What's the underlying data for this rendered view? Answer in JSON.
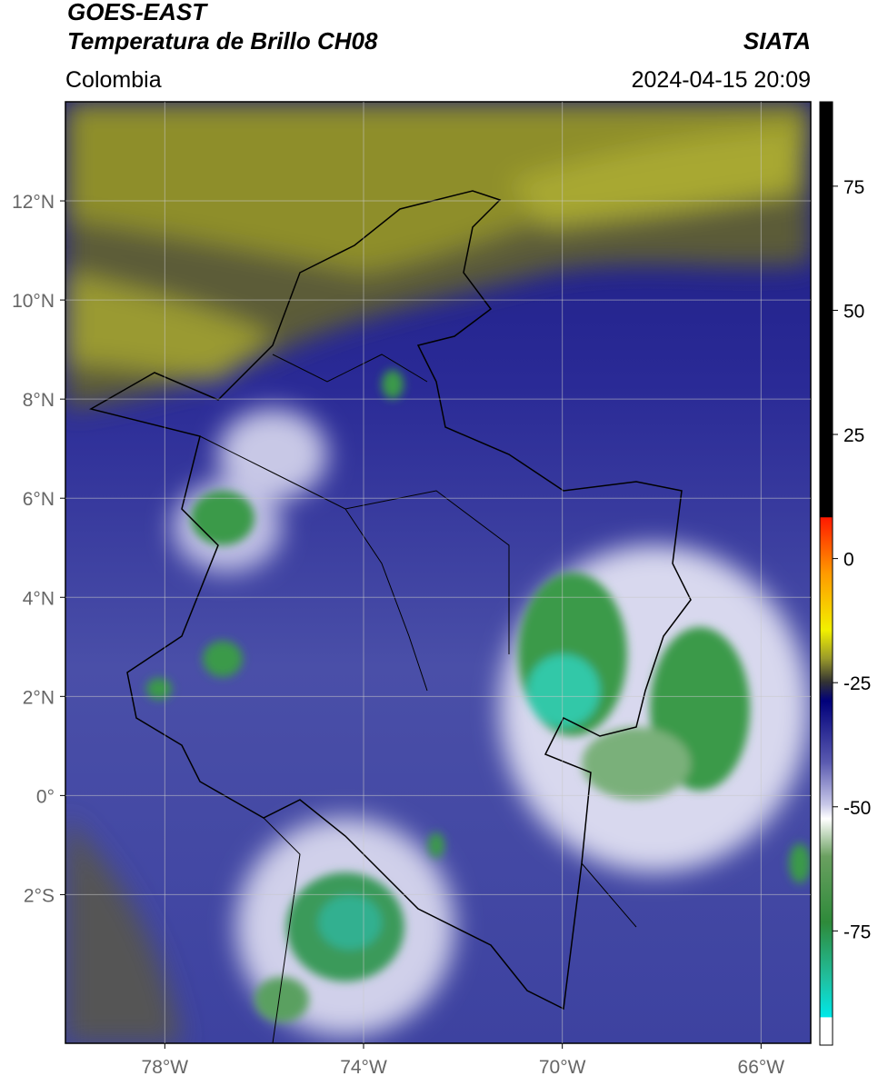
{
  "header": {
    "line1": "GOES-EAST",
    "line2": "Temperatura de Brillo CH08",
    "source": "SIATA",
    "region": "Colombia",
    "timestamp": "2024-04-15 20:09"
  },
  "map": {
    "lon_range": [
      -80,
      -65
    ],
    "lat_range": [
      -5,
      14
    ],
    "lon_ticks": [
      {
        "value": -78,
        "label": "78°W"
      },
      {
        "value": -74,
        "label": "74°W"
      },
      {
        "value": -70,
        "label": "70°W"
      },
      {
        "value": -66,
        "label": "66°W"
      }
    ],
    "lat_ticks": [
      {
        "value": 12,
        "label": "12°N"
      },
      {
        "value": 10,
        "label": "10°N"
      },
      {
        "value": 8,
        "label": "8°N"
      },
      {
        "value": 6,
        "label": "6°N"
      },
      {
        "value": 4,
        "label": "4°N"
      },
      {
        "value": 2,
        "label": "2°N"
      },
      {
        "value": 0,
        "label": "0°"
      },
      {
        "value": -2,
        "label": "2°S"
      }
    ]
  },
  "colorbar": {
    "range": [
      -98,
      92
    ],
    "ticks": [
      75,
      50,
      25,
      0,
      -25,
      -50,
      -75
    ]
  }
}
